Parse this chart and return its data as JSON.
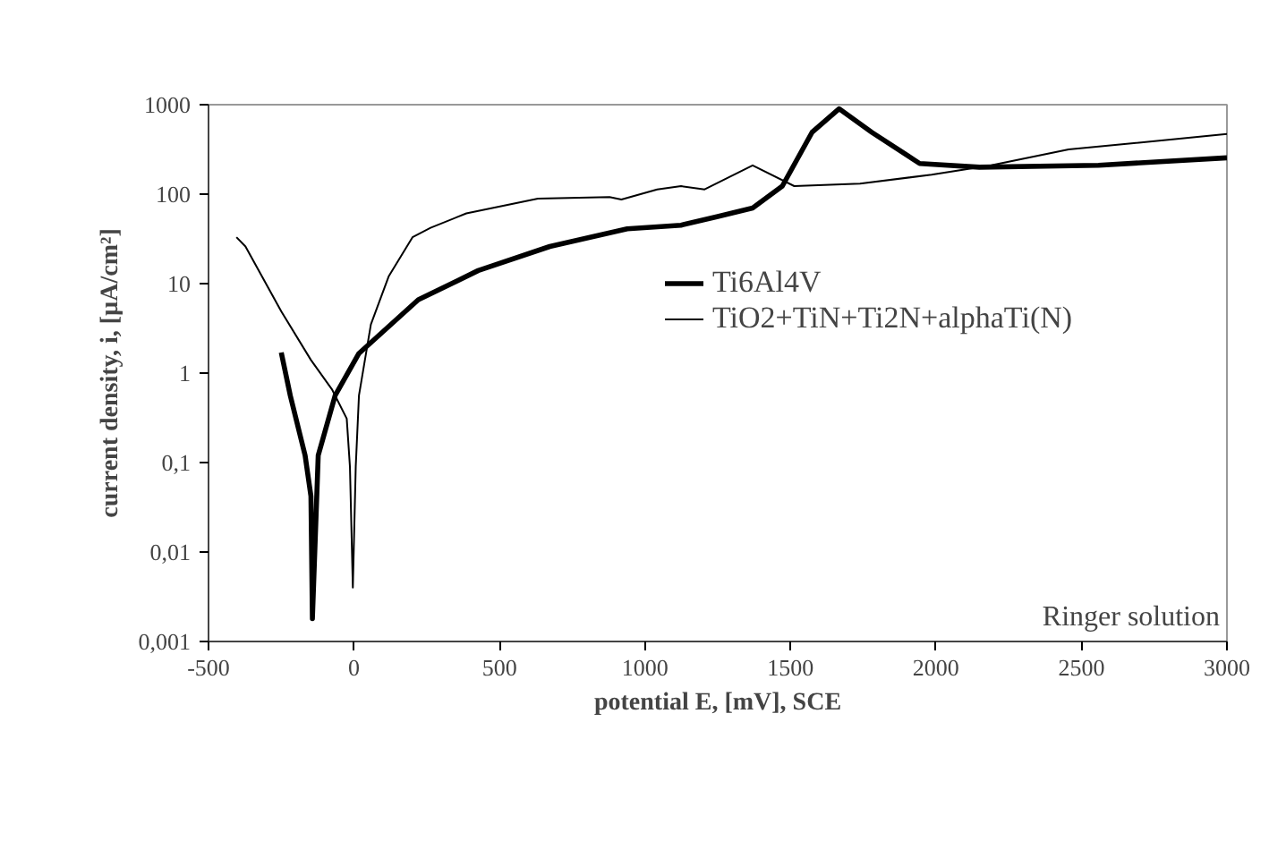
{
  "chart_data": {
    "type": "line",
    "xlabel": "potential E, [mV], SCE",
    "ylabel": "current density, i, [µA/cm²]",
    "log": "y",
    "xlim": [
      -500,
      3000
    ],
    "xticks": [
      -500,
      0,
      500,
      1000,
      1500,
      2000,
      2500,
      3000
    ],
    "ylim": [
      0.001,
      1000
    ],
    "yticks": [
      {
        "value": 0.001,
        "label": "0,001"
      },
      {
        "value": 0.01,
        "label": "0,01"
      },
      {
        "value": 0.1,
        "label": "0,1"
      },
      1,
      10,
      100,
      1000
    ],
    "grid": false,
    "legend": "right",
    "marker": "none",
    "line_style": "solid",
    "annotations": [
      "Ringer solution"
    ],
    "series": [
      {
        "name": "Ti6Al4V",
        "color": "#000000",
        "x": [
          -250,
          -219,
          -168,
          -148,
          -143,
          -123,
          -65,
          17,
          221,
          427,
          673,
          939,
          1124,
          1247,
          1370,
          1472,
          1574,
          1667,
          1780,
          1944,
          2149,
          2559,
          3000
        ],
        "values": [
          1.7,
          0.56,
          0.12,
          0.042,
          0.0018,
          0.12,
          0.56,
          1.66,
          6.6,
          14,
          26,
          41,
          45,
          56,
          70,
          123,
          490,
          900,
          490,
          220,
          200,
          210,
          255
        ]
      },
      {
        "name": "TiO2+TiN+Ti2N+alphaTi(N)",
        "color": "#000000",
        "x": [
          -404,
          -373,
          -250,
          -148,
          -76,
          -25,
          -14,
          -4,
          6,
          17,
          58,
          119,
          201,
          263,
          386,
          632,
          878,
          919,
          1042,
          1124,
          1205,
          1370,
          1513,
          1739,
          1985,
          2190,
          2456,
          3000
        ],
        "values": [
          33,
          26,
          4.9,
          1.4,
          0.66,
          0.31,
          0.09,
          0.004,
          0.09,
          0.56,
          3.5,
          12,
          33,
          42,
          61,
          89,
          93,
          87,
          113,
          123,
          113,
          210,
          123,
          131,
          165,
          210,
          316,
          470
        ]
      }
    ]
  }
}
